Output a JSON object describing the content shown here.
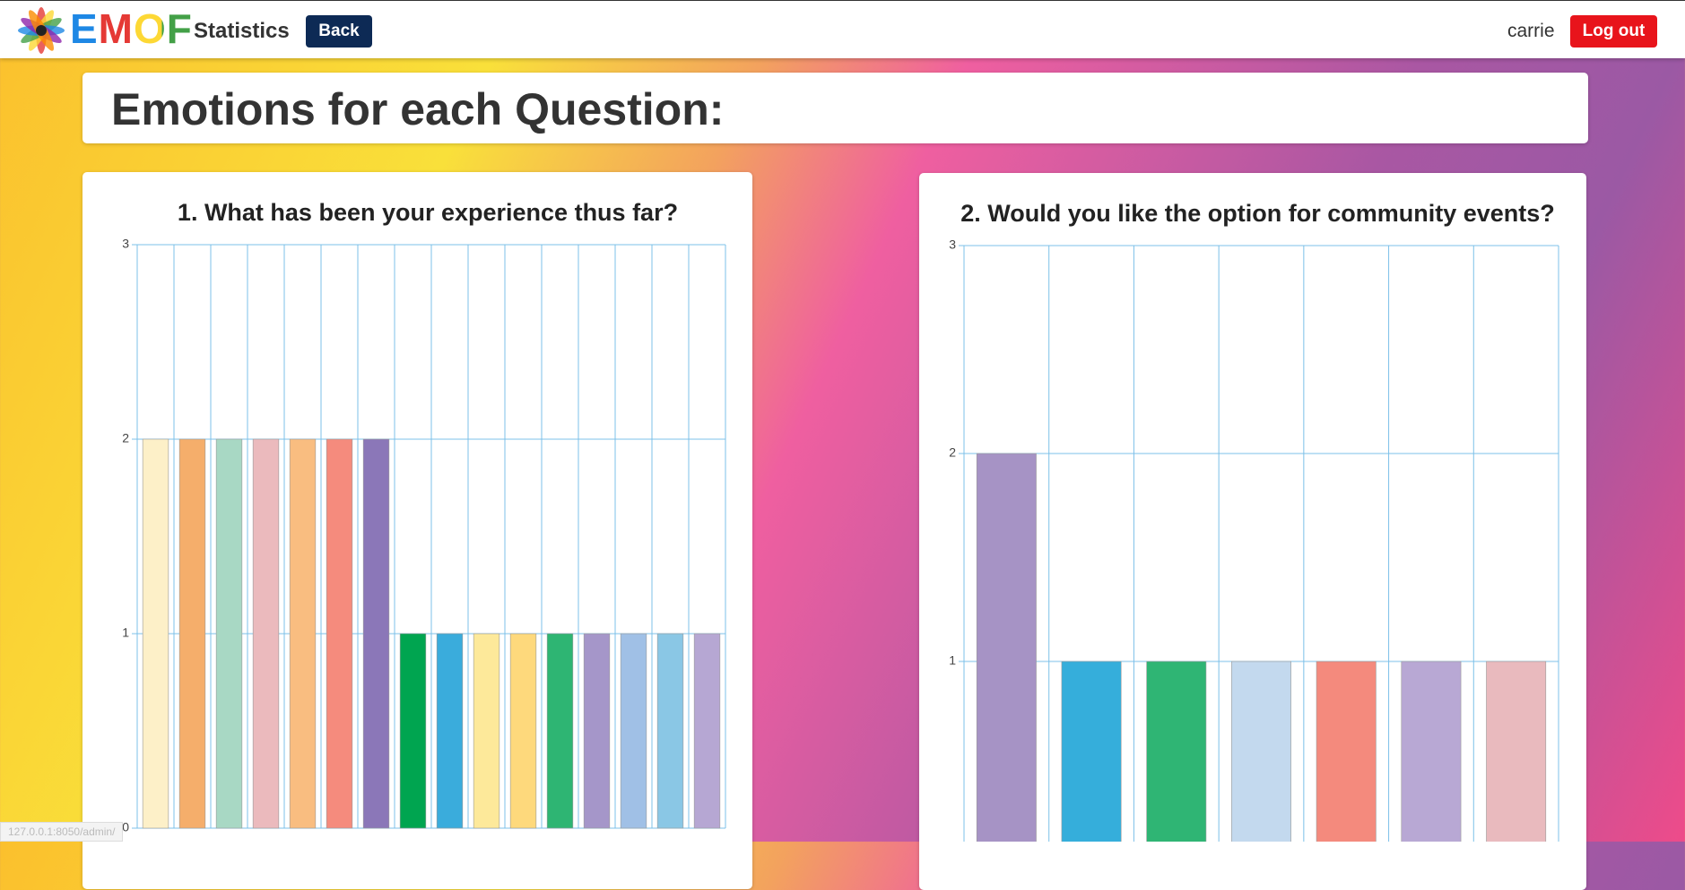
{
  "header": {
    "logo": "EMOF",
    "page": "Statistics",
    "back": "Back",
    "user": "carrie",
    "logout": "Log out"
  },
  "section_title": "Emotions for each Question:",
  "status_url": "127.0.0.1:8050/admin/",
  "chart_data": [
    {
      "type": "bar",
      "title": "1. What has been your experience thus far?",
      "categories": [
        null,
        null,
        null,
        null,
        null,
        null,
        null,
        null,
        null,
        null,
        null,
        null,
        null,
        null,
        null,
        null
      ],
      "values": [
        2,
        2,
        2,
        2,
        2,
        2,
        2,
        1,
        1,
        1,
        1,
        1,
        1,
        1,
        1,
        1
      ],
      "colors": [
        "#fdf0c8",
        "#f5ae6b",
        "#a8d8c4",
        "#ebbabd",
        "#f9bd80",
        "#f58b7d",
        "#8b77b8",
        "#00a550",
        "#3aacdc",
        "#fde99a",
        "#fed97c",
        "#2eb573",
        "#a596c9",
        "#a0c0e6",
        "#8ac7e5",
        "#b6a7d3"
      ],
      "ylim": [
        0,
        3
      ],
      "yticks": [
        0,
        1,
        2,
        3
      ],
      "grid": true
    },
    {
      "type": "bar",
      "title": "2. Would you like the option for community events?",
      "categories": [
        null,
        null,
        null,
        null,
        null,
        null,
        null
      ],
      "values": [
        2,
        1,
        1,
        1,
        1,
        1,
        1
      ],
      "colors": [
        "#a693c5",
        "#35aedb",
        "#2fb574",
        "#c3d9ee",
        "#f48a7d",
        "#b8a8d4",
        "#e9babe"
      ],
      "ylim": [
        0,
        3
      ],
      "yticks": [
        0,
        1,
        2,
        3
      ],
      "grid": true
    }
  ]
}
